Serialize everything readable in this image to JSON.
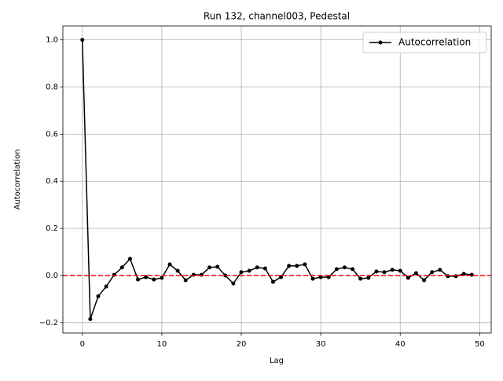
{
  "chart_data": {
    "type": "line",
    "title": "Run 132, channel003, Pedestal",
    "xlabel": "Lag",
    "ylabel": "Autocorrelation",
    "x": [
      0,
      1,
      2,
      3,
      4,
      5,
      6,
      7,
      8,
      9,
      10,
      11,
      12,
      13,
      14,
      15,
      16,
      17,
      18,
      19,
      20,
      21,
      22,
      23,
      24,
      25,
      26,
      27,
      28,
      29,
      30,
      31,
      32,
      33,
      34,
      35,
      36,
      37,
      38,
      39,
      40,
      41,
      42,
      43,
      44,
      45,
      46,
      47,
      48,
      49
    ],
    "series": [
      {
        "name": "Autocorrelation",
        "color": "#000000",
        "values": [
          1.0,
          -0.185,
          -0.088,
          -0.047,
          0.003,
          0.034,
          0.071,
          -0.017,
          -0.007,
          -0.017,
          -0.01,
          0.047,
          0.02,
          -0.02,
          0.003,
          0.003,
          0.034,
          0.037,
          0.0,
          -0.034,
          0.014,
          0.02,
          0.034,
          0.03,
          -0.027,
          -0.007,
          0.041,
          0.041,
          0.047,
          -0.014,
          -0.007,
          -0.007,
          0.027,
          0.034,
          0.027,
          -0.014,
          -0.01,
          0.017,
          0.014,
          0.024,
          0.02,
          -0.01,
          0.01,
          -0.02,
          0.014,
          0.024,
          -0.003,
          -0.003,
          0.007,
          0.003
        ]
      }
    ],
    "hline": {
      "value": 0,
      "color": "#ff0000"
    },
    "xlim": [
      -2.45,
      51.45
    ],
    "xticks": [
      0,
      10,
      20,
      30,
      40,
      50
    ],
    "ylim": [
      -0.244,
      1.059
    ],
    "yticks": [
      {
        "value": -0.2,
        "label": "−0.2"
      },
      {
        "value": 0,
        "label": "0.0"
      },
      0.2,
      0.4,
      0.6,
      0.8,
      {
        "value": 1,
        "label": "1.0"
      }
    ],
    "grid": true,
    "legend": "upper right"
  }
}
